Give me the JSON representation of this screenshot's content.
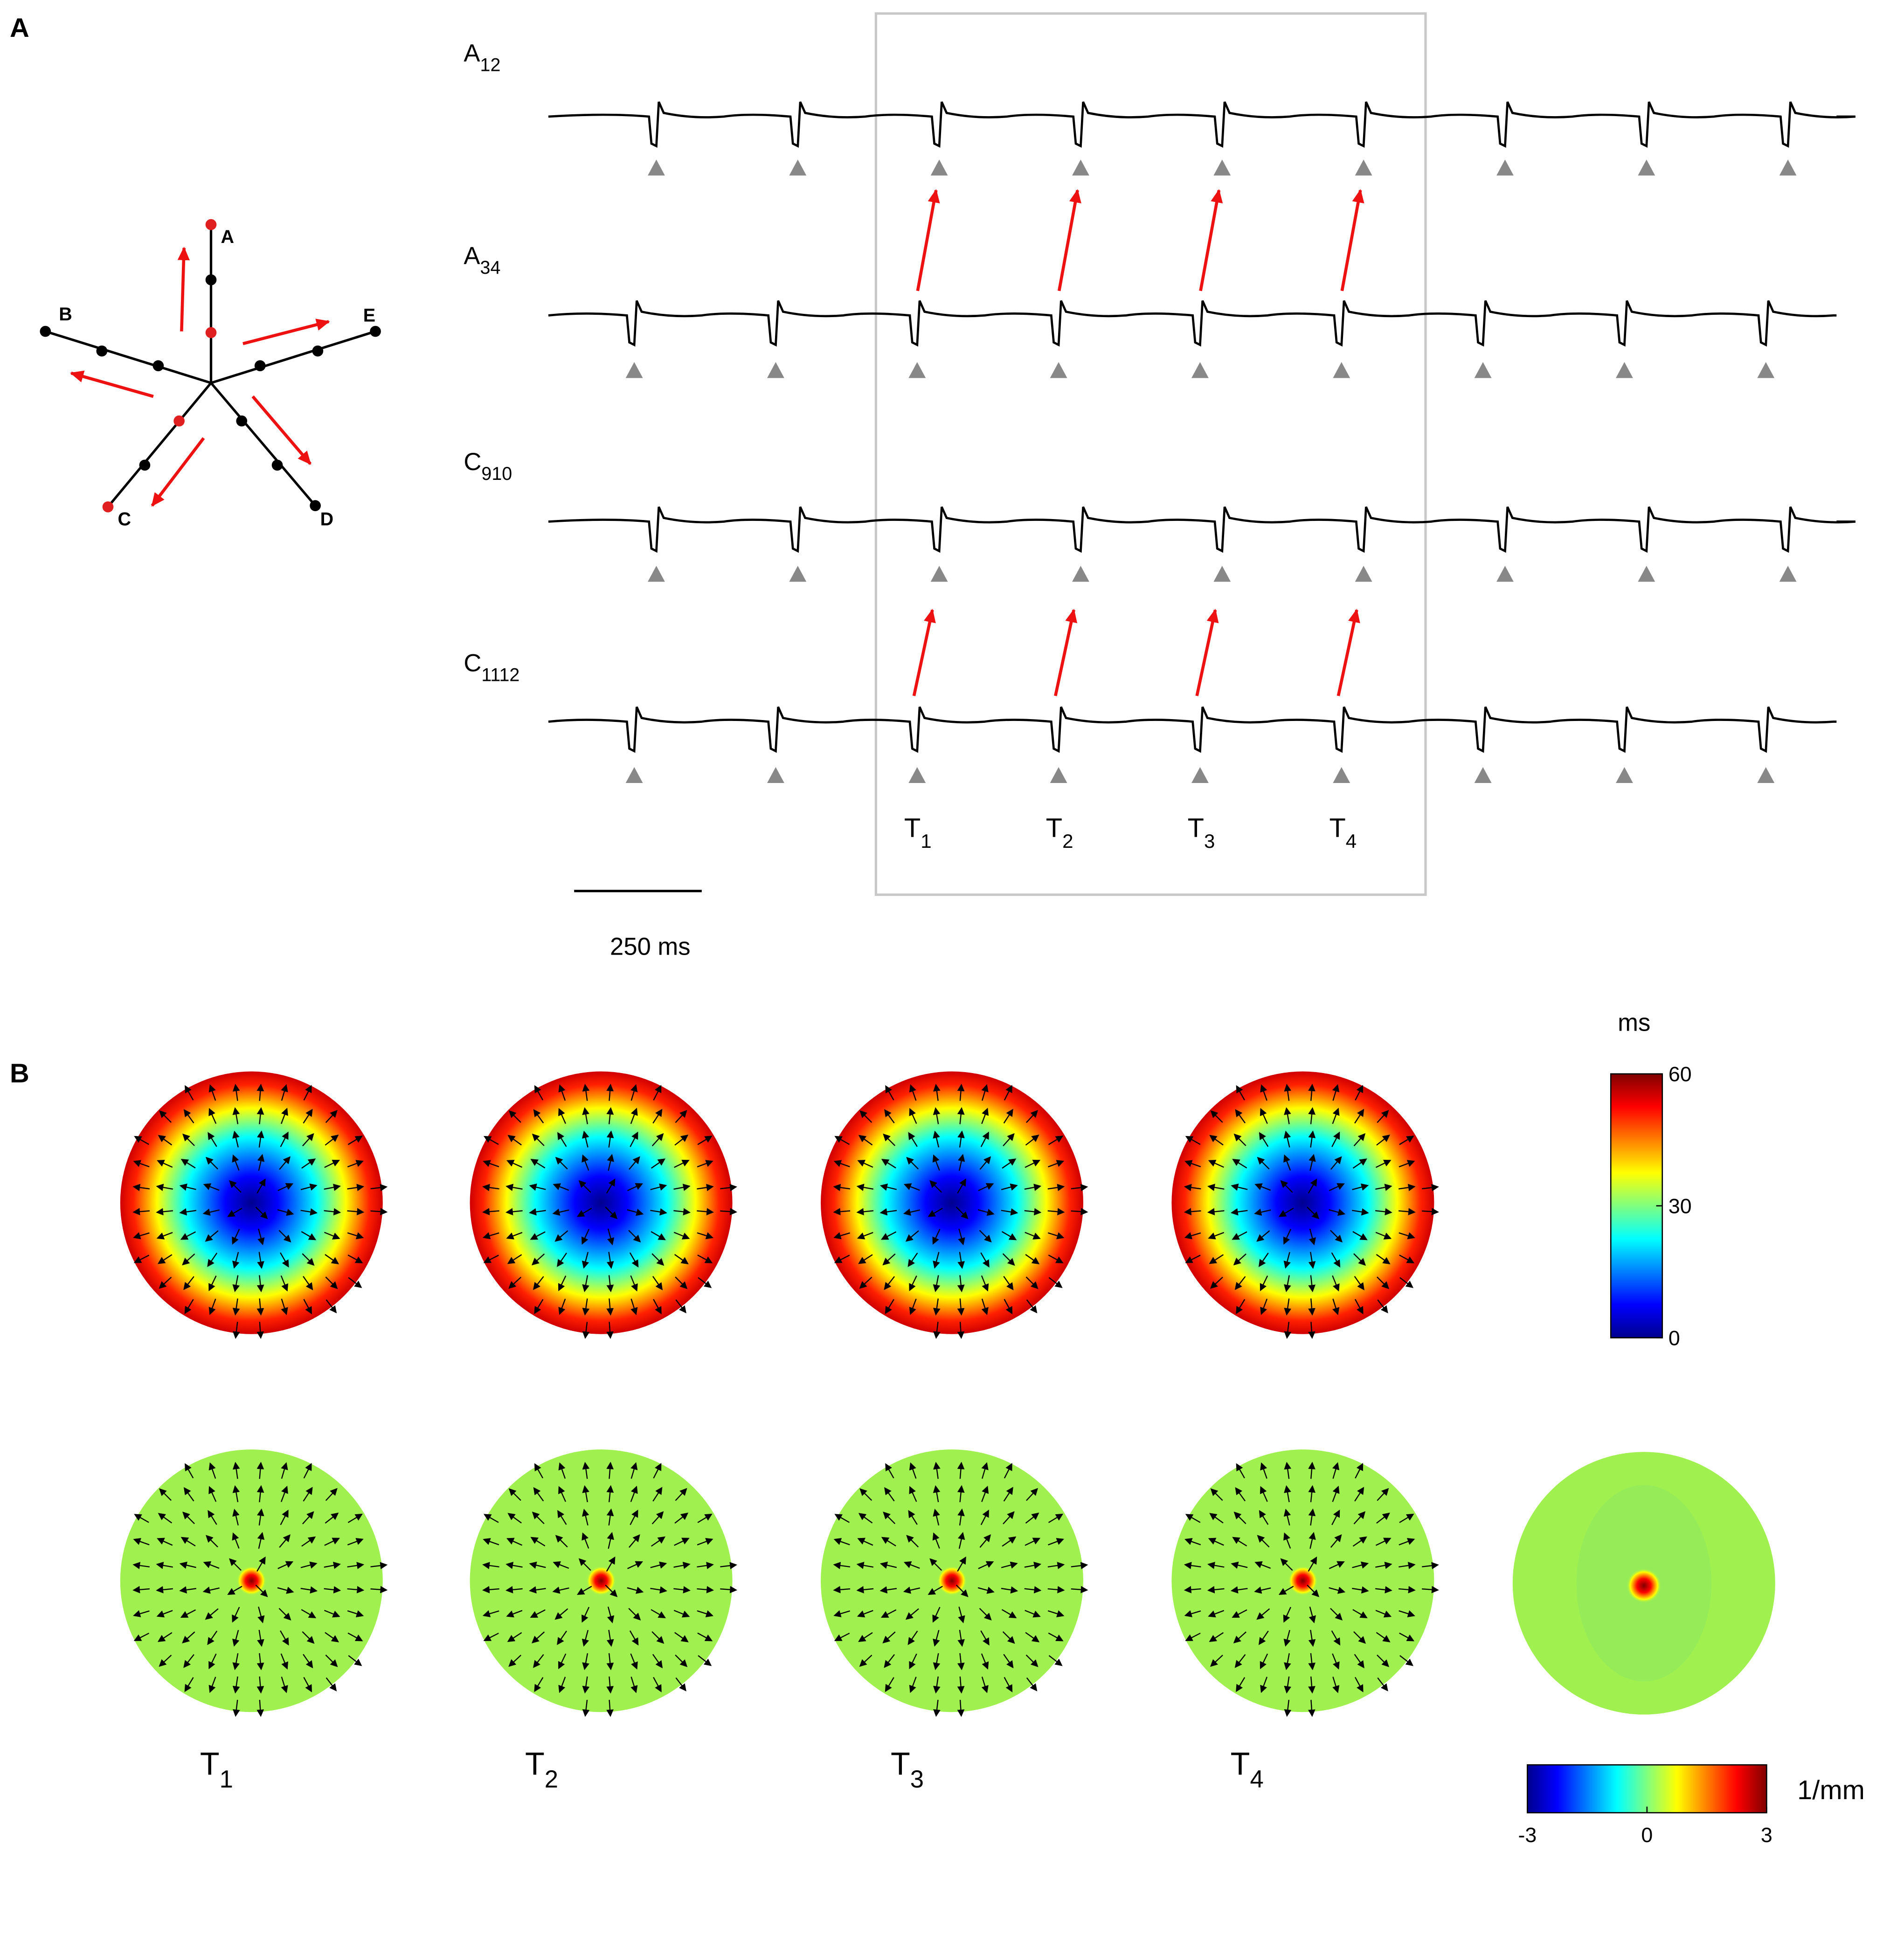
{
  "panel_labels": {
    "a": "A",
    "b": "B"
  },
  "branch_labels": [
    "A",
    "B",
    "C",
    "D",
    "E"
  ],
  "traces": [
    {
      "main": "A",
      "sub": "12"
    },
    {
      "main": "A",
      "sub": "34"
    },
    {
      "main": "C",
      "sub": "910"
    },
    {
      "main": "C",
      "sub": "1112"
    }
  ],
  "time_labels_a": [
    {
      "main": "T",
      "sub": "1"
    },
    {
      "main": "T",
      "sub": "2"
    },
    {
      "main": "T",
      "sub": "3"
    },
    {
      "main": "T",
      "sub": "4"
    }
  ],
  "scale_bar": "250 ms",
  "time_labels_b": [
    {
      "main": "T",
      "sub": "1"
    },
    {
      "main": "T",
      "sub": "2"
    },
    {
      "main": "T",
      "sub": "3"
    },
    {
      "main": "T",
      "sub": "4"
    }
  ],
  "activation_colorbar": {
    "unit": "ms",
    "ticks": [
      60,
      30,
      0
    ]
  },
  "curvature_colorbar": {
    "unit": "1/mm",
    "ticks": [
      -3,
      0,
      3
    ]
  }
}
